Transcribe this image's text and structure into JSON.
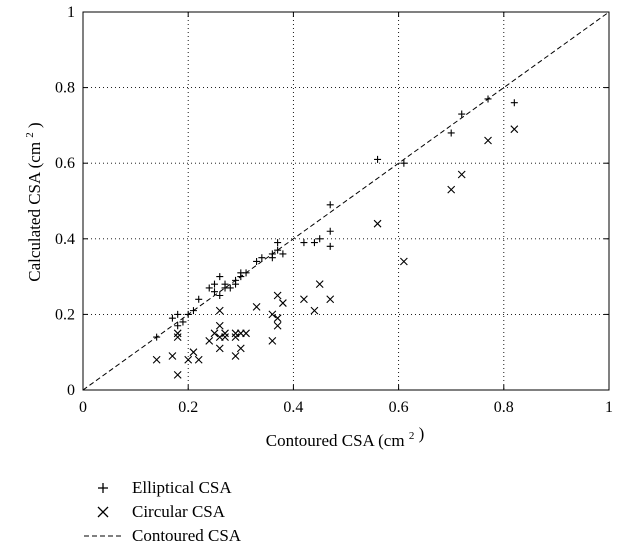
{
  "chart_data": {
    "type": "scatter",
    "xlabel": "Contoured CSA",
    "ylabel": "Calculated CSA",
    "unit_text": "(cm",
    "unit_sup": "2",
    "unit_close": ")",
    "xlim": [
      0,
      1
    ],
    "ylim": [
      0,
      1
    ],
    "x_ticks": [
      0,
      0.2,
      0.4,
      0.6,
      0.8,
      1
    ],
    "y_ticks": [
      0,
      0.2,
      0.4,
      0.6,
      0.8,
      1
    ],
    "x_tick_labels": [
      "0",
      "0.2",
      "0.4",
      "0.6",
      "0.8",
      "1"
    ],
    "y_tick_labels": [
      "0",
      "0.2",
      "0.4",
      "0.6",
      "0.8",
      "1"
    ],
    "grid": true,
    "legend_position": "below",
    "series": [
      {
        "name": "Elliptical CSA",
        "marker": "plus",
        "points": [
          [
            0.14,
            0.14
          ],
          [
            0.17,
            0.19
          ],
          [
            0.18,
            0.17
          ],
          [
            0.18,
            0.2
          ],
          [
            0.19,
            0.18
          ],
          [
            0.2,
            0.2
          ],
          [
            0.21,
            0.21
          ],
          [
            0.22,
            0.24
          ],
          [
            0.24,
            0.27
          ],
          [
            0.25,
            0.26
          ],
          [
            0.25,
            0.28
          ],
          [
            0.26,
            0.25
          ],
          [
            0.26,
            0.3
          ],
          [
            0.27,
            0.27
          ],
          [
            0.27,
            0.28
          ],
          [
            0.28,
            0.27
          ],
          [
            0.29,
            0.28
          ],
          [
            0.29,
            0.29
          ],
          [
            0.3,
            0.3
          ],
          [
            0.3,
            0.31
          ],
          [
            0.31,
            0.31
          ],
          [
            0.33,
            0.34
          ],
          [
            0.34,
            0.35
          ],
          [
            0.36,
            0.35
          ],
          [
            0.36,
            0.36
          ],
          [
            0.37,
            0.37
          ],
          [
            0.37,
            0.39
          ],
          [
            0.38,
            0.36
          ],
          [
            0.42,
            0.39
          ],
          [
            0.44,
            0.39
          ],
          [
            0.45,
            0.4
          ],
          [
            0.47,
            0.38
          ],
          [
            0.47,
            0.42
          ],
          [
            0.47,
            0.49
          ],
          [
            0.56,
            0.61
          ],
          [
            0.61,
            0.6
          ],
          [
            0.7,
            0.68
          ],
          [
            0.72,
            0.73
          ],
          [
            0.77,
            0.77
          ],
          [
            0.82,
            0.76
          ]
        ]
      },
      {
        "name": "Circular CSA",
        "marker": "cross",
        "points": [
          [
            0.14,
            0.08
          ],
          [
            0.17,
            0.09
          ],
          [
            0.18,
            0.04
          ],
          [
            0.18,
            0.14
          ],
          [
            0.18,
            0.15
          ],
          [
            0.2,
            0.08
          ],
          [
            0.21,
            0.1
          ],
          [
            0.22,
            0.08
          ],
          [
            0.24,
            0.13
          ],
          [
            0.25,
            0.15
          ],
          [
            0.26,
            0.11
          ],
          [
            0.26,
            0.14
          ],
          [
            0.26,
            0.17
          ],
          [
            0.26,
            0.21
          ],
          [
            0.27,
            0.14
          ],
          [
            0.27,
            0.15
          ],
          [
            0.29,
            0.09
          ],
          [
            0.29,
            0.14
          ],
          [
            0.29,
            0.15
          ],
          [
            0.3,
            0.11
          ],
          [
            0.3,
            0.15
          ],
          [
            0.31,
            0.15
          ],
          [
            0.33,
            0.22
          ],
          [
            0.36,
            0.13
          ],
          [
            0.36,
            0.2
          ],
          [
            0.37,
            0.17
          ],
          [
            0.37,
            0.19
          ],
          [
            0.37,
            0.25
          ],
          [
            0.38,
            0.23
          ],
          [
            0.42,
            0.24
          ],
          [
            0.44,
            0.21
          ],
          [
            0.45,
            0.28
          ],
          [
            0.47,
            0.24
          ],
          [
            0.56,
            0.44
          ],
          [
            0.61,
            0.34
          ],
          [
            0.7,
            0.53
          ],
          [
            0.72,
            0.57
          ],
          [
            0.77,
            0.66
          ],
          [
            0.82,
            0.69
          ]
        ]
      },
      {
        "name": "Contoured CSA",
        "marker": "dashed-line",
        "points": [
          [
            0,
            0
          ],
          [
            1,
            1
          ]
        ]
      }
    ]
  }
}
